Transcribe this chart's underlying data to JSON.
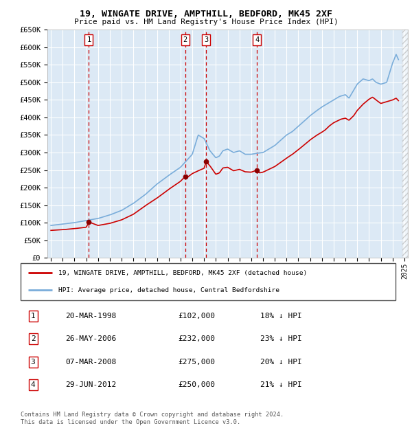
{
  "title": "19, WINGATE DRIVE, AMPTHILL, BEDFORD, MK45 2XF",
  "subtitle": "Price paid vs. HM Land Registry's House Price Index (HPI)",
  "ylim": [
    0,
    650000
  ],
  "yticks": [
    0,
    50000,
    100000,
    150000,
    200000,
    250000,
    300000,
    350000,
    400000,
    450000,
    500000,
    550000,
    600000,
    650000
  ],
  "ytick_labels": [
    "£0",
    "£50K",
    "£100K",
    "£150K",
    "£200K",
    "£250K",
    "£300K",
    "£350K",
    "£400K",
    "£450K",
    "£500K",
    "£550K",
    "£600K",
    "£650K"
  ],
  "xlim_start": 1994.7,
  "xlim_end": 2025.3,
  "plot_bg_color": "#dce9f5",
  "grid_color": "#ffffff",
  "red_line_color": "#cc0000",
  "blue_line_color": "#7aadda",
  "sale_marker_color": "#8b0000",
  "sale_vline_color": "#cc0000",
  "transactions": [
    {
      "num": 1,
      "date_label": "20-MAR-1998",
      "year": 1998.22,
      "price": 102000,
      "pct": "18%",
      "direction": "↓"
    },
    {
      "num": 2,
      "date_label": "26-MAY-2006",
      "year": 2006.4,
      "price": 232000,
      "pct": "23%",
      "direction": "↓"
    },
    {
      "num": 3,
      "date_label": "07-MAR-2008",
      "year": 2008.18,
      "price": 275000,
      "pct": "20%",
      "direction": "↓"
    },
    {
      "num": 4,
      "date_label": "29-JUN-2012",
      "year": 2012.5,
      "price": 250000,
      "pct": "21%",
      "direction": "↓"
    }
  ],
  "legend_label_red": "19, WINGATE DRIVE, AMPTHILL, BEDFORD, MK45 2XF (detached house)",
  "legend_label_blue": "HPI: Average price, detached house, Central Bedfordshire",
  "footer": "Contains HM Land Registry data © Crown copyright and database right 2024.\nThis data is licensed under the Open Government Licence v3.0."
}
